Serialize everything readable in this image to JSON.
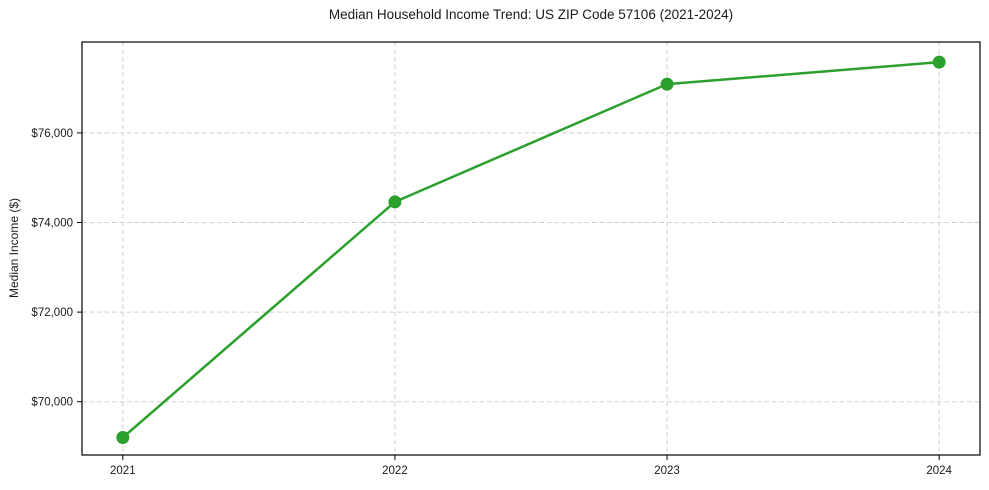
{
  "chart_data": {
    "type": "line",
    "title": "Median Household Income Trend: US ZIP Code 57106 (2021-2024)",
    "xlabel": "",
    "ylabel": "Median Income ($)",
    "x": [
      2021,
      2022,
      2023,
      2024
    ],
    "x_tick_labels": [
      "2021",
      "2022",
      "2023",
      "2024"
    ],
    "series": [
      {
        "name": "median-household-income",
        "values": [
          69200,
          74460,
          77090,
          77580
        ],
        "color": "#2ca02c",
        "marker": "circle"
      }
    ],
    "y_ticks": [
      70000,
      72000,
      74000,
      76000
    ],
    "y_tick_labels": [
      "$70,000",
      "$72,000",
      "$74,000",
      "$76,000"
    ],
    "xlim": [
      2020.85,
      2024.15
    ],
    "ylim": [
      68810,
      78030
    ],
    "grid": true,
    "grid_style": "dashed",
    "legend_position": "none",
    "colors": {
      "line": "#2ca02c",
      "grid": "#cfcfcf",
      "spine": "#000000",
      "tick": "#1a1a1a",
      "background": "#ffffff",
      "text": "#1a1a1a"
    }
  }
}
